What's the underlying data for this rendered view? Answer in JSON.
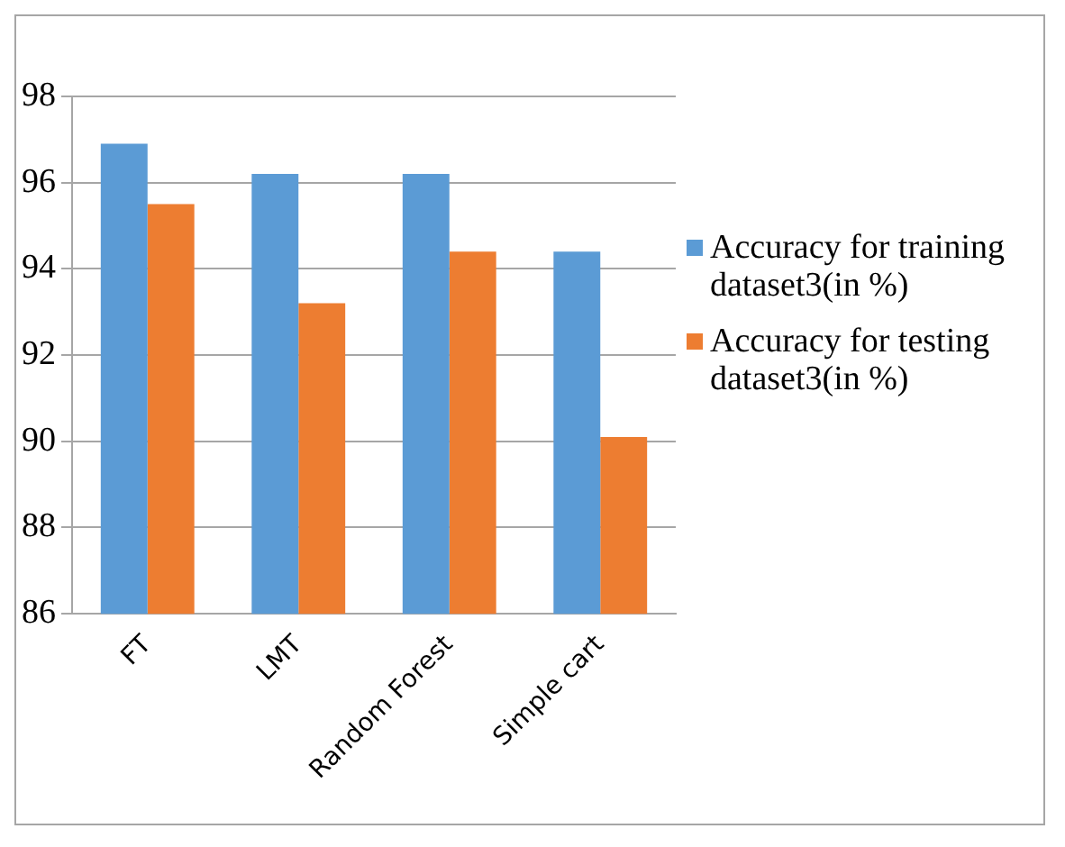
{
  "chart_data": {
    "type": "bar",
    "categories": [
      "FT",
      "LMT",
      "Random Forest",
      "Simple cart"
    ],
    "series": [
      {
        "name": "Accuracy for training dataset3(in %)",
        "color": "#5b9bd5",
        "values": [
          96.9,
          96.2,
          96.2,
          94.4
        ]
      },
      {
        "name": "Accuracy for testing dataset3(in %)",
        "color": "#ed7d31",
        "values": [
          95.5,
          93.2,
          94.4,
          90.1
        ]
      }
    ],
    "ylim": [
      86,
      98
    ],
    "yticks": [
      86,
      88,
      90,
      92,
      94,
      96,
      98
    ],
    "grid": "y",
    "legend": "right"
  }
}
